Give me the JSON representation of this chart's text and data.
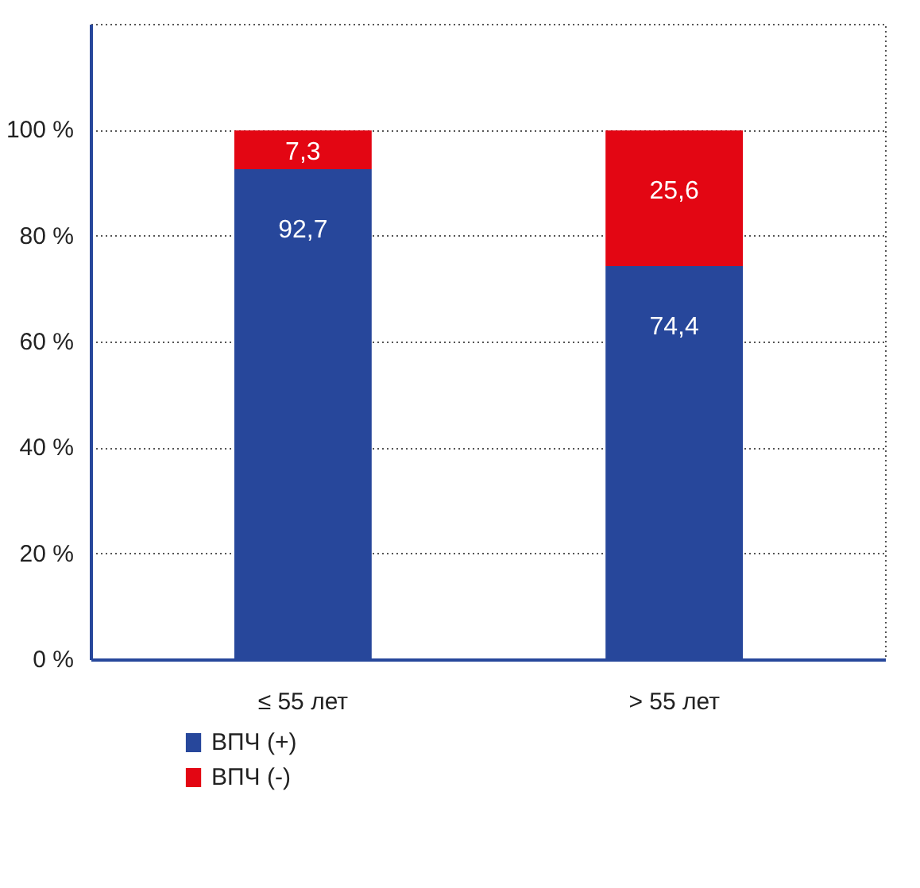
{
  "chart_data": {
    "type": "bar",
    "stacked": true,
    "categories": [
      "≤ 55 лет",
      "> 55 лет"
    ],
    "series": [
      {
        "name": "ВПЧ (+)",
        "color": "#27479b",
        "values": [
          92.7,
          74.4
        ],
        "value_labels": [
          "92,7",
          "74,4"
        ]
      },
      {
        "name": "ВПЧ (-)",
        "color": "#e30613",
        "values": [
          7.3,
          25.6
        ],
        "value_labels": [
          "7,3",
          "25,6"
        ]
      }
    ],
    "ylim": [
      0,
      120
    ],
    "yticks": [
      {
        "value": 0,
        "label": "0 %"
      },
      {
        "value": 20,
        "label": "20 %"
      },
      {
        "value": 40,
        "label": "40 %"
      },
      {
        "value": 60,
        "label": "60 %"
      },
      {
        "value": 80,
        "label": "80 %"
      },
      {
        "value": 100,
        "label": "100 %"
      }
    ],
    "grid": "y",
    "legend": "bottom left"
  }
}
